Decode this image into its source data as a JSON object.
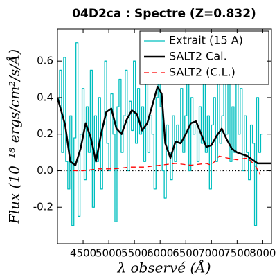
{
  "chart_data": {
    "type": "line",
    "title": "04D2ca : Spectre (Z=0.832)",
    "x_label": "λ observé (Å)",
    "y_label": "Flux (10⁻¹⁸ ergs/cm²/s/Å)",
    "xlim": [
      4000,
      8170
    ],
    "ylim": [
      -0.4,
      0.775
    ],
    "xticks": [
      4500,
      5000,
      5500,
      6000,
      6500,
      7000,
      7500,
      8000
    ],
    "yticks": [
      -0.2,
      {
        "value": 0,
        "label": "0.0"
      },
      0.2,
      0.4,
      0.6
    ],
    "legend": "upper right",
    "reference_line": {
      "y": 0,
      "style": "dotted",
      "color": "#000000"
    },
    "series": [
      {
        "name": "Extrait (15 A)",
        "color": "#00bfbf",
        "style": "steps",
        "x": [
          4040,
          4080,
          4120,
          4160,
          4200,
          4240,
          4280,
          4320,
          4360,
          4400,
          4440,
          4480,
          4520,
          4560,
          4600,
          4640,
          4680,
          4720,
          4760,
          4800,
          4840,
          4880,
          4920,
          4960,
          5000,
          5040,
          5080,
          5120,
          5160,
          5200,
          5240,
          5280,
          5320,
          5360,
          5400,
          5440,
          5480,
          5520,
          5560,
          5600,
          5640,
          5680,
          5720,
          5760,
          5800,
          5840,
          5880,
          5920,
          5960,
          6000,
          6040,
          6080,
          6120,
          6160,
          6200,
          6240,
          6280,
          6320,
          6360,
          6400,
          6440,
          6480,
          6520,
          6560,
          6600,
          6640,
          6680,
          6720,
          6760,
          6800,
          6840,
          6880,
          6920,
          6960,
          7000,
          7040,
          7080,
          7120,
          7160,
          7200,
          7240,
          7280,
          7320,
          7360,
          7400,
          7440,
          7480,
          7520,
          7560,
          7600,
          7640,
          7680,
          7720,
          7760,
          7800,
          7840,
          7880,
          7920,
          7960,
          8000
        ],
        "values": [
          0.35,
          0.55,
          0.1,
          0.62,
          0.05,
          -0.1,
          0.3,
          -0.3,
          0.18,
          0.7,
          -0.25,
          0.2,
          0.45,
          -0.05,
          0.35,
          0.1,
          0.55,
          -0.2,
          0.3,
          0.05,
          0.4,
          -0.1,
          0.25,
          0.6,
          0.15,
          0.0,
          0.42,
          0.2,
          -0.28,
          0.35,
          0.5,
          0.1,
          0.3,
          0.55,
          0.0,
          0.38,
          0.22,
          0.6,
          0.15,
          0.45,
          0.2,
          0.35,
          0.05,
          0.5,
          0.1,
          0.3,
          0.2,
          -0.1,
          0.4,
          0.65,
          0.35,
          0.0,
          -0.15,
          0.25,
          0.1,
          -0.05,
          0.3,
          0.05,
          0.25,
          0.15,
          0.45,
          0.1,
          0.3,
          0.55,
          0.0,
          0.4,
          0.2,
          0.25,
          0.05,
          0.35,
          0.15,
          0.55,
          0.1,
          0.3,
          -0.1,
          0.25,
          0.4,
          0.05,
          0.6,
          0.15,
          0.3,
          0.7,
          0.2,
          0.5,
          0.05,
          0.35,
          0.1,
          0.55,
          0.2,
          0.45,
          0.0,
          0.3,
          0.1,
          -0.05,
          0.25,
          0.15,
          -0.3,
          0.4,
          0.1,
          0.2
        ]
      },
      {
        "name": "SALT2 Cal.",
        "color": "#000000",
        "style": "solid",
        "x": [
          4000,
          4150,
          4250,
          4350,
          4450,
          4550,
          4650,
          4750,
          4850,
          4950,
          5050,
          5150,
          5250,
          5350,
          5450,
          5550,
          5650,
          5750,
          5850,
          5950,
          6030,
          6100,
          6200,
          6300,
          6400,
          6500,
          6600,
          6700,
          6800,
          6900,
          7000,
          7100,
          7200,
          7300,
          7400,
          7500,
          7600,
          7700,
          7800,
          7900,
          8000,
          8170
        ],
        "values": [
          0.4,
          0.25,
          0.05,
          0.03,
          0.12,
          0.26,
          0.18,
          0.05,
          0.2,
          0.32,
          0.34,
          0.23,
          0.2,
          0.28,
          0.33,
          0.31,
          0.22,
          0.26,
          0.36,
          0.46,
          0.42,
          0.15,
          0.07,
          0.16,
          0.15,
          0.2,
          0.26,
          0.27,
          0.2,
          0.13,
          0.14,
          0.19,
          0.23,
          0.17,
          0.12,
          0.1,
          0.09,
          0.08,
          0.06,
          0.04,
          0.04,
          0.04
        ]
      },
      {
        "name": "SALT2 (C.L.)",
        "color": "#ff0000",
        "style": "dashed",
        "x": [
          4300,
          4500,
          4800,
          5100,
          5400,
          5700,
          6000,
          6300,
          6600,
          6900,
          7000,
          7150,
          7300,
          7500,
          7700,
          7850,
          7950
        ],
        "values": [
          0.0,
          0.0,
          0.01,
          0.01,
          0.02,
          0.02,
          0.03,
          0.04,
          0.03,
          0.04,
          0.03,
          0.08,
          0.07,
          0.06,
          0.07,
          0.03,
          -0.02
        ]
      }
    ]
  }
}
